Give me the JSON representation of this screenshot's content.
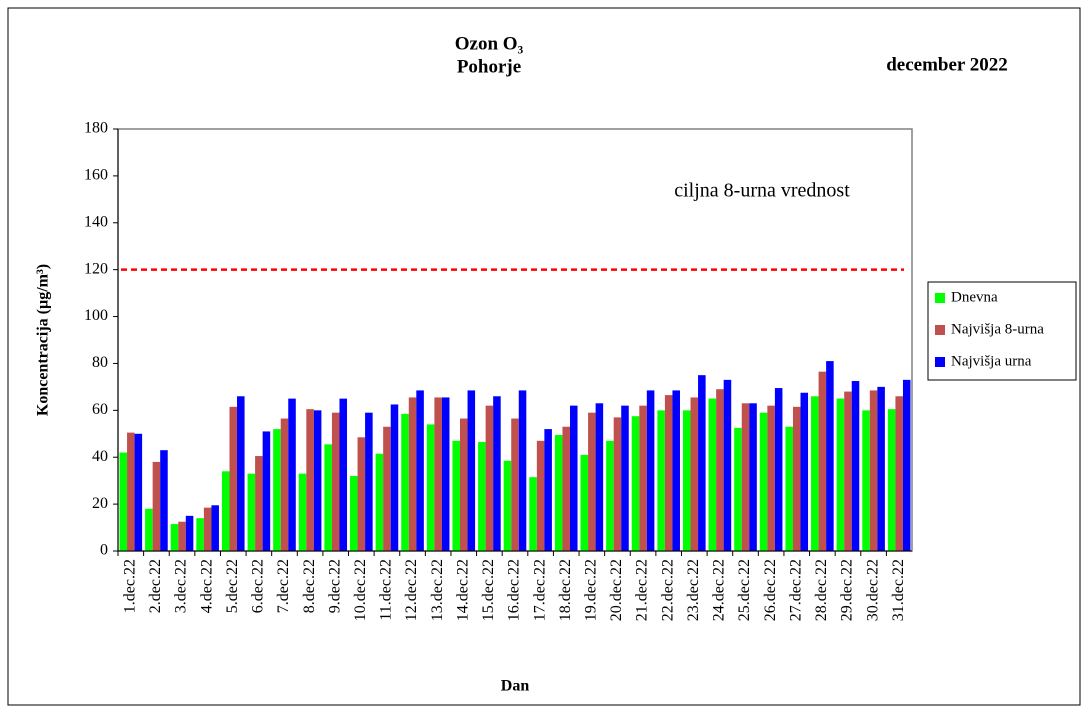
{
  "chart_data": {
    "type": "bar",
    "title": "Ozon O₃",
    "subtitle": "Pohorje",
    "period": "december 2022",
    "x_label": "Dan",
    "y_label": "Koncentracija  (µg/m³)",
    "categories": [
      "1.dec.22",
      "2.dec.22",
      "3.dec.22",
      "4.dec.22",
      "5.dec.22",
      "6.dec.22",
      "7.dec.22",
      "8.dec.22",
      "9.dec.22",
      "10.dec.22",
      "11.dec.22",
      "12.dec.22",
      "13.dec.22",
      "14.dec.22",
      "15.dec.22",
      "16.dec.22",
      "17.dec.22",
      "18.dec.22",
      "19.dec.22",
      "20.dec.22",
      "21.dec.22",
      "22.dec.22",
      "23.dec.22",
      "24.dec.22",
      "25.dec.22",
      "26.dec.22",
      "27.dec.22",
      "28.dec.22",
      "29.dec.22",
      "30.dec.22",
      "31.dec.22"
    ],
    "series": [
      {
        "name": "Dnevna",
        "color": "#00ff00",
        "values": [
          42,
          18,
          11.5,
          14,
          34,
          33,
          52,
          33,
          45.5,
          32,
          41.5,
          58.5,
          54,
          47,
          46.5,
          38.5,
          31.5,
          49.5,
          41,
          47,
          57.5,
          60,
          60,
          65,
          52.5,
          59,
          53,
          66,
          65,
          60,
          60.5
        ]
      },
      {
        "name": "Najvišja 8-urna",
        "color": "#c0504d",
        "values": [
          50.5,
          38,
          12.5,
          18.5,
          61.5,
          40.5,
          56.5,
          60.5,
          59,
          48.5,
          53,
          65.5,
          65.5,
          56.5,
          62,
          56.5,
          47,
          53,
          59,
          57,
          62,
          66.5,
          65.5,
          69,
          63,
          62,
          61.5,
          76.5,
          68,
          68.5,
          66
        ]
      },
      {
        "name": "Najvišja urna",
        "color": "#0000ff",
        "values": [
          50,
          43,
          15,
          19.5,
          66,
          51,
          65,
          60,
          65,
          59,
          62.5,
          68.5,
          65.5,
          68.5,
          66,
          68.5,
          52,
          62,
          63,
          62,
          68.5,
          68.5,
          75,
          73,
          63,
          69.5,
          67.5,
          81,
          72.5,
          70,
          73
        ]
      }
    ],
    "reference_line": {
      "value": 120,
      "label": "ciljna 8-urna vrednost",
      "color": "#ff0000"
    },
    "ylim": [
      0,
      180
    ],
    "yticks": [
      0,
      20,
      40,
      60,
      80,
      100,
      120,
      140,
      160,
      180
    ],
    "grid": false,
    "legend": "right"
  }
}
